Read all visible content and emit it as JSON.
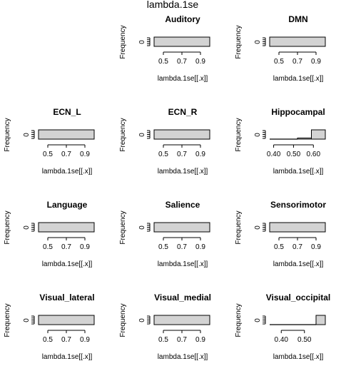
{
  "figure_title": "lambda.1se",
  "chart_data": [
    {
      "type": "bar",
      "title": "Auditory",
      "xlabel": "lambda.1se[[.x]]",
      "ylabel": "Frequency",
      "y_tick_labels": [
        "0"
      ],
      "x_ticks": [
        0.5,
        0.7,
        0.9
      ],
      "xlim": [
        0.4,
        1.0
      ],
      "bins": [
        {
          "from": 0.4,
          "to": 1.0,
          "count": 0
        }
      ]
    },
    {
      "type": "bar",
      "title": "DMN",
      "xlabel": "lambda.1se[[.x]]",
      "ylabel": "Frequency",
      "y_tick_labels": [
        "0"
      ],
      "x_ticks": [
        0.5,
        0.7,
        0.9
      ],
      "xlim": [
        0.4,
        1.0
      ],
      "bins": [
        {
          "from": 0.4,
          "to": 1.0,
          "count": 0
        }
      ]
    },
    {
      "type": "bar",
      "title": "ECN_L",
      "xlabel": "lambda.1se[[.x]]",
      "ylabel": "Frequency",
      "y_tick_labels": [
        "0"
      ],
      "x_ticks": [
        0.5,
        0.7,
        0.9
      ],
      "xlim": [
        0.4,
        1.0
      ],
      "bins": [
        {
          "from": 0.4,
          "to": 1.0,
          "count": 0
        }
      ]
    },
    {
      "type": "bar",
      "title": "ECN_R",
      "xlabel": "lambda.1se[[.x]]",
      "ylabel": "Frequency",
      "y_tick_labels": [
        "0"
      ],
      "x_ticks": [
        0.5,
        0.7,
        0.9
      ],
      "xlim": [
        0.4,
        1.0
      ],
      "bins": [
        {
          "from": 0.4,
          "to": 1.0,
          "count": 0
        }
      ]
    },
    {
      "type": "bar",
      "title": "Hippocampal",
      "xlabel": "lambda.1se[[.x]]",
      "ylabel": "Frequency",
      "y_tick_labels": [
        "0"
      ],
      "x_ticks": [
        0.4,
        0.5,
        0.6
      ],
      "x_tick_labels": [
        "0.40",
        "0.50",
        "0.60"
      ],
      "xlim": [
        0.38,
        0.66
      ],
      "bins": [
        {
          "from": 0.38,
          "to": 0.45,
          "count": 0
        },
        {
          "from": 0.45,
          "to": 0.52,
          "count": 0
        },
        {
          "from": 0.52,
          "to": 0.59,
          "count": 0.12
        },
        {
          "from": 0.59,
          "to": 0.66,
          "count": 1
        }
      ]
    },
    {
      "type": "bar",
      "title": "Language",
      "xlabel": "lambda.1se[[.x]]",
      "ylabel": "Frequency",
      "y_tick_labels": [
        "0"
      ],
      "x_ticks": [
        0.5,
        0.7,
        0.9
      ],
      "xlim": [
        0.4,
        1.0
      ],
      "bins": [
        {
          "from": 0.4,
          "to": 1.0,
          "count": 0
        }
      ]
    },
    {
      "type": "bar",
      "title": "Salience",
      "xlabel": "lambda.1se[[.x]]",
      "ylabel": "Frequency",
      "y_tick_labels": [
        "0"
      ],
      "x_ticks": [
        0.5,
        0.7,
        0.9
      ],
      "xlim": [
        0.4,
        1.0
      ],
      "bins": [
        {
          "from": 0.4,
          "to": 1.0,
          "count": 0
        }
      ]
    },
    {
      "type": "bar",
      "title": "Sensorimotor",
      "xlabel": "lambda.1se[[.x]]",
      "ylabel": "Frequency",
      "y_tick_labels": [
        "0"
      ],
      "x_ticks": [
        0.5,
        0.7,
        0.9
      ],
      "xlim": [
        0.4,
        1.0
      ],
      "bins": [
        {
          "from": 0.4,
          "to": 1.0,
          "count": 0
        }
      ]
    },
    {
      "type": "bar",
      "title": "Visual_lateral",
      "xlabel": "lambda.1se[[.x]]",
      "ylabel": "Frequency",
      "y_tick_labels": [
        "0"
      ],
      "x_ticks": [
        0.5,
        0.7,
        0.9
      ],
      "xlim": [
        0.4,
        1.0
      ],
      "bins": [
        {
          "from": 0.4,
          "to": 1.0,
          "count": 0
        }
      ]
    },
    {
      "type": "bar",
      "title": "Visual_medial",
      "xlabel": "lambda.1se[[.x]]",
      "ylabel": "Frequency",
      "y_tick_labels": [
        "0"
      ],
      "x_ticks": [
        0.5,
        0.7,
        0.9
      ],
      "xlim": [
        0.4,
        1.0
      ],
      "bins": [
        {
          "from": 0.4,
          "to": 1.0,
          "count": 0
        }
      ]
    },
    {
      "type": "bar",
      "title": "Visual_occipital",
      "xlabel": "lambda.1se[[.x]]",
      "ylabel": "Frequency",
      "y_tick_labels": [
        "0"
      ],
      "x_ticks": [
        0.4,
        0.5
      ],
      "x_tick_labels": [
        "0.40",
        "0.50"
      ],
      "xlim": [
        0.35,
        0.59
      ],
      "bins": [
        {
          "from": 0.35,
          "to": 0.55,
          "count": 0
        },
        {
          "from": 0.55,
          "to": 0.59,
          "count": 1
        }
      ]
    }
  ],
  "colors": {
    "bar_fill": "#d3d3d3",
    "stroke": "#000000",
    "background": "#ffffff"
  }
}
